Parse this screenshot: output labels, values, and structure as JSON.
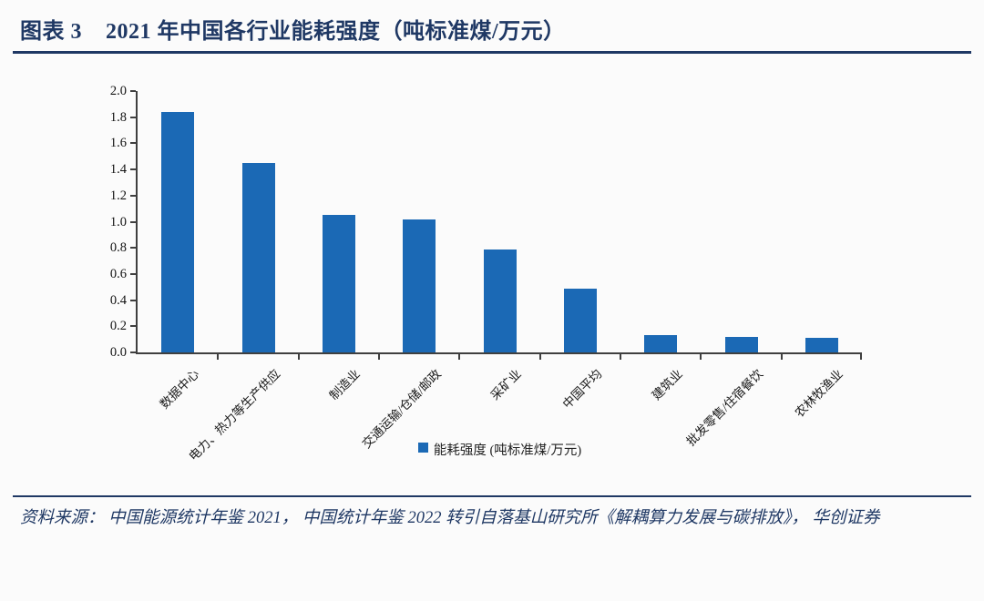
{
  "page": {
    "background": "#fbfbfb"
  },
  "header": {
    "figure_label": "图表 3",
    "figure_title": "2021 年中国各行业能耗强度（吨标准煤/万元）",
    "accent_color": "#1F3864"
  },
  "chart_data": {
    "type": "bar",
    "title": "2021 年中国各行业能耗强度（吨标准煤/万元）",
    "categories": [
      "数据中心",
      "电力、热力等生产供应",
      "制造业",
      "交通运输/仓储/邮政",
      "采矿业",
      "中国平均",
      "建筑业",
      "批发零售/住宿餐饮",
      "农林牧渔业"
    ],
    "values": [
      1.84,
      1.45,
      1.05,
      1.02,
      0.79,
      0.49,
      0.13,
      0.12,
      0.11
    ],
    "xlabel": "",
    "ylabel": "",
    "ylim": [
      0,
      2.0
    ],
    "ytick_labels": [
      "0.0",
      "0.2",
      "0.4",
      "0.6",
      "0.8",
      "1.0",
      "1.2",
      "1.4",
      "1.6",
      "1.8",
      "2.0"
    ],
    "grid": false,
    "bar_color": "#1B69B5",
    "axis_color": "#3F3F3F",
    "legend": {
      "position": "bottom-center",
      "items": [
        {
          "label": "能耗强度 (吨标准煤/万元)",
          "color": "#1B69B5"
        }
      ]
    }
  },
  "footer": {
    "source_text": "资料来源： 中国能源统计年鉴 2021， 中国统计年鉴 2022 转引自落基山研究所《解耦算力发展与碳排放》， 华创证券"
  }
}
